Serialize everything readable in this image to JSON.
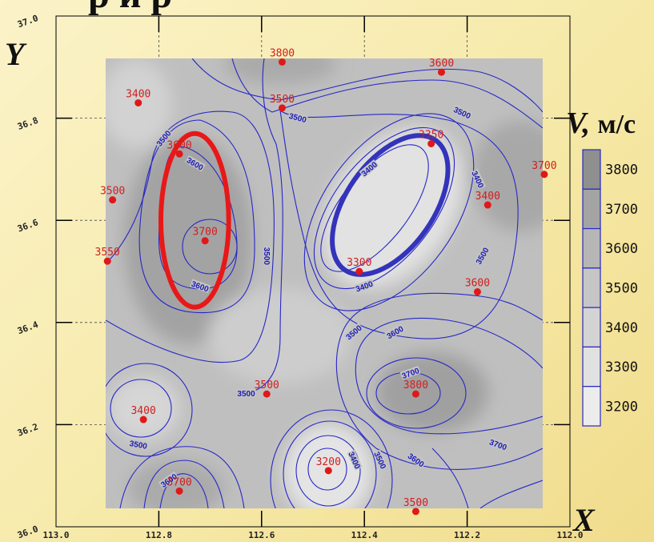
{
  "title_fragment": "р        и        р",
  "axes": {
    "y_title": "Y",
    "x_title": "X",
    "x_ticks": [
      "113.0",
      "112.8",
      "112.6",
      "112.4",
      "112.2",
      "112.0"
    ],
    "y_ticks": [
      "36.0",
      "36.2",
      "36.4",
      "36.6",
      "36.8",
      "37.0"
    ],
    "x_range": [
      113.0,
      112.0
    ],
    "y_range": [
      36.0,
      37.0
    ],
    "inner_grid_dashed": true
  },
  "legend": {
    "title_symbol": "V,",
    "title_unit": "м/с",
    "levels": [
      "3800",
      "3700",
      "3600",
      "3500",
      "3400",
      "3300",
      "3200"
    ],
    "colors": [
      "#8f8f8f",
      "#a4a4a4",
      "#b6b6b6",
      "#c6c6c6",
      "#d4d4d4",
      "#e1e1e1",
      "#ececec"
    ]
  },
  "stations": [
    {
      "label": "3800",
      "x": 112.56,
      "y": 36.91
    },
    {
      "label": "3600",
      "x": 112.25,
      "y": 36.89
    },
    {
      "label": "3400",
      "x": 112.84,
      "y": 36.83
    },
    {
      "label": "3500",
      "x": 112.56,
      "y": 36.82
    },
    {
      "label": "3350",
      "x": 112.27,
      "y": 36.75
    },
    {
      "label": "3600",
      "x": 112.76,
      "y": 36.73
    },
    {
      "label": "3700",
      "x": 112.05,
      "y": 36.69
    },
    {
      "label": "3500",
      "x": 112.89,
      "y": 36.64
    },
    {
      "label": "3400",
      "x": 112.16,
      "y": 36.63
    },
    {
      "label": "3700",
      "x": 112.71,
      "y": 36.56
    },
    {
      "label": "3550",
      "x": 112.9,
      "y": 36.52
    },
    {
      "label": "3300",
      "x": 112.41,
      "y": 36.5
    },
    {
      "label": "3600",
      "x": 112.18,
      "y": 36.46
    },
    {
      "label": "3500",
      "x": 112.59,
      "y": 36.26
    },
    {
      "label": "3800",
      "x": 112.3,
      "y": 36.26
    },
    {
      "label": "3400",
      "x": 112.83,
      "y": 36.21
    },
    {
      "label": "3200",
      "x": 112.47,
      "y": 36.11
    },
    {
      "label": "3700",
      "x": 112.76,
      "y": 36.07
    },
    {
      "label": "3500",
      "x": 112.3,
      "y": 36.03
    }
  ],
  "contour_labels": [
    {
      "text": "3500",
      "x": 112.79,
      "y": 36.76,
      "rot": -50
    },
    {
      "text": "3600",
      "x": 112.73,
      "y": 36.71,
      "rot": 30
    },
    {
      "text": "3500",
      "x": 112.53,
      "y": 36.8,
      "rot": 15
    },
    {
      "text": "3500",
      "x": 112.21,
      "y": 36.81,
      "rot": 25
    },
    {
      "text": "3400",
      "x": 112.39,
      "y": 36.7,
      "rot": -40
    },
    {
      "text": "3400",
      "x": 112.18,
      "y": 36.68,
      "rot": 65
    },
    {
      "text": "3500",
      "x": 112.59,
      "y": 36.53,
      "rot": 90
    },
    {
      "text": "3500",
      "x": 112.17,
      "y": 36.53,
      "rot": -60
    },
    {
      "text": "3600",
      "x": 112.72,
      "y": 36.47,
      "rot": 20
    },
    {
      "text": "3400",
      "x": 112.4,
      "y": 36.47,
      "rot": -20
    },
    {
      "text": "3500",
      "x": 112.42,
      "y": 36.38,
      "rot": -40
    },
    {
      "text": "3600",
      "x": 112.34,
      "y": 36.38,
      "rot": -30
    },
    {
      "text": "3700",
      "x": 112.31,
      "y": 36.3,
      "rot": -20
    },
    {
      "text": "3500",
      "x": 112.63,
      "y": 36.26,
      "rot": 0
    },
    {
      "text": "3500",
      "x": 112.84,
      "y": 36.16,
      "rot": 10
    },
    {
      "text": "3600",
      "x": 112.78,
      "y": 36.09,
      "rot": -35
    },
    {
      "text": "3400",
      "x": 112.42,
      "y": 36.13,
      "rot": 65
    },
    {
      "text": "3500",
      "x": 112.37,
      "y": 36.13,
      "rot": 65
    },
    {
      "text": "3600",
      "x": 112.3,
      "y": 36.13,
      "rot": 35
    },
    {
      "text": "3700",
      "x": 112.14,
      "y": 36.16,
      "rot": 20
    }
  ],
  "highlight_ellipses": [
    {
      "color": "#e81818",
      "cx": 112.73,
      "cy": 36.6,
      "rx": 0.066,
      "ry": 0.17,
      "rot": 0
    },
    {
      "color": "#3333bb",
      "cx": 112.35,
      "cy": 36.63,
      "rx": 0.085,
      "ry": 0.155,
      "rot": 35
    }
  ]
}
